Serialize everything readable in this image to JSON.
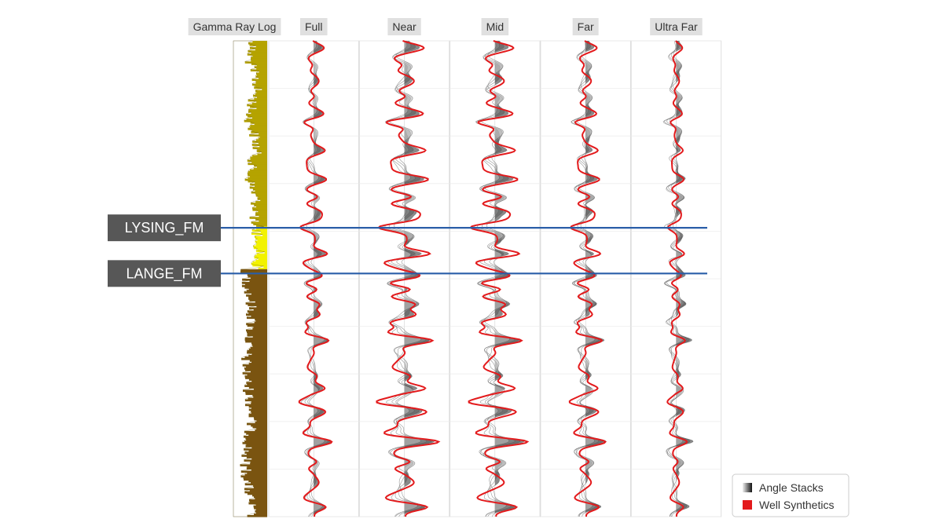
{
  "chart_data": {
    "type": "line",
    "title": "",
    "panels": [
      {
        "name": "gamma",
        "label": "Gamma Ray Log"
      },
      {
        "name": "full",
        "label": "Full",
        "stack_strength": 0.55,
        "synthetic_amp": 1.0
      },
      {
        "name": "near",
        "label": "Near",
        "stack_strength": 0.9,
        "synthetic_amp": 1.9
      },
      {
        "name": "mid",
        "label": "Mid",
        "stack_strength": 0.85,
        "synthetic_amp": 1.8
      },
      {
        "name": "far",
        "label": "Far",
        "stack_strength": 0.6,
        "synthetic_amp": 1.1
      },
      {
        "name": "ultra-far",
        "label": "Ultra Far",
        "stack_strength": 0.5,
        "synthetic_amp": 0.6
      }
    ],
    "depth_range": [
      0,
      100
    ],
    "formation_tops": [
      {
        "name": "LYSING_FM",
        "depth": 39.3
      },
      {
        "name": "LANGE_FM",
        "depth": 48.9
      }
    ],
    "series": [
      {
        "name": "Angle Stacks",
        "color": "#2b2b2b"
      },
      {
        "name": "Well Synthetics",
        "color": "#e31a1c"
      }
    ],
    "gamma_colors": {
      "high": "#7a5410",
      "mid": "#b5a300",
      "low": "#f2f200"
    },
    "top_line_color": "#2a5ea8",
    "legend_position": "bottom-right",
    "grid": true
  }
}
